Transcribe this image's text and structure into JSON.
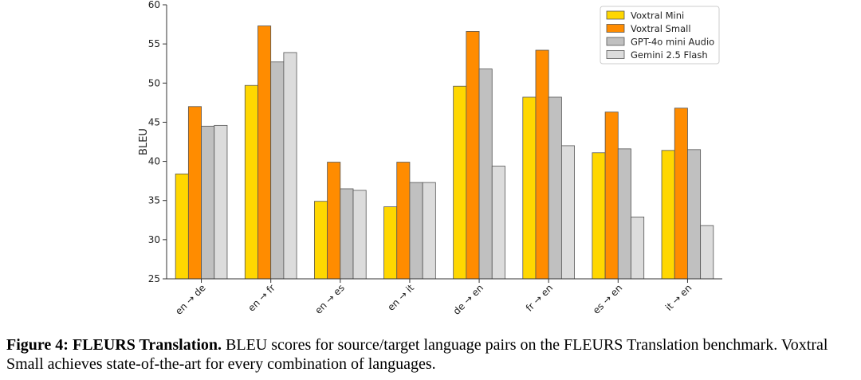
{
  "chart_data": {
    "type": "bar",
    "ylabel": "BLEU",
    "ylim": [
      25,
      60
    ],
    "yticks": [
      25,
      30,
      35,
      40,
      45,
      50,
      55,
      60
    ],
    "legend_position": "top-right",
    "grid": false,
    "categories": [
      "en → de",
      "en → fr",
      "en → es",
      "en → it",
      "de → en",
      "fr → en",
      "es → en",
      "it → en"
    ],
    "series": [
      {
        "name": "Voxtral Mini",
        "color": "#FFD700",
        "values": [
          38.4,
          49.7,
          34.9,
          34.2,
          49.6,
          48.2,
          41.1,
          41.4
        ]
      },
      {
        "name": "Voxtral Small",
        "color": "#FF8C00",
        "values": [
          47.0,
          57.3,
          39.9,
          39.9,
          56.6,
          54.2,
          46.3,
          46.8
        ]
      },
      {
        "name": "GPT-4o mini Audio",
        "color": "#C0C0C0",
        "values": [
          44.5,
          52.7,
          36.5,
          37.3,
          51.8,
          48.2,
          41.6,
          41.5
        ]
      },
      {
        "name": "Gemini 2.5 Flash",
        "color": "#DCDCDC",
        "values": [
          44.6,
          53.9,
          36.3,
          37.3,
          39.4,
          42.0,
          32.9,
          31.8
        ]
      }
    ]
  },
  "caption": {
    "label": "Figure 4: FLEURS Translation.",
    "text": " BLEU scores for source/target language pairs on the FLEURS Translation benchmark. Voxtral Small achieves state-of-the-art for every combination of languages."
  }
}
